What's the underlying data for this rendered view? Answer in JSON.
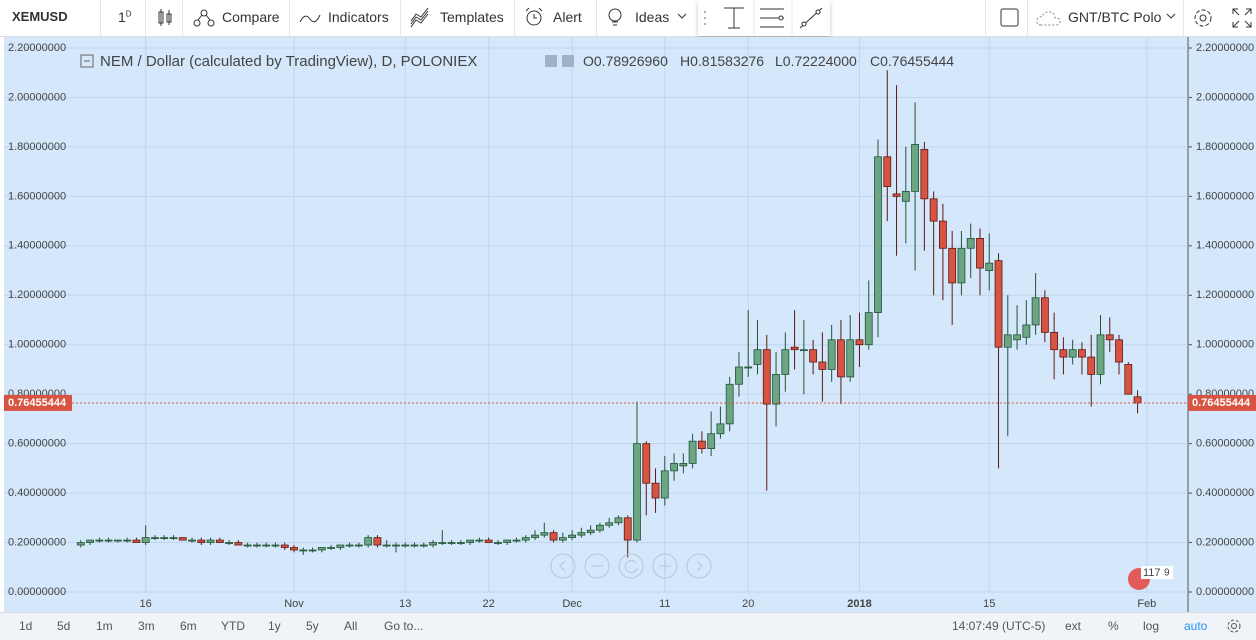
{
  "toolbar": {
    "symbol": "XEMUSD",
    "interval": "1",
    "interval_unit": "D",
    "buttons": [
      "Compare",
      "Indicators",
      "Templates",
      "Alert",
      "Ideas"
    ],
    "watchlist": "GNT/BTC Polo"
  },
  "chart_data": {
    "type": "candlestick",
    "title": "NEM / Dollar (calculated by TradingView), D, POLONIEX",
    "ohlc_header": [
      {
        "key": "O",
        "text": "0.78926960"
      },
      {
        "key": "H",
        "text": "0.81583276"
      },
      {
        "key": "L",
        "text": "0.72224000"
      },
      {
        "key": "C",
        "text": "0.76455444"
      }
    ],
    "categories": [
      null,
      null,
      null,
      null,
      null,
      null,
      null,
      "16",
      null,
      null,
      null,
      null,
      null,
      null,
      null,
      null,
      null,
      null,
      null,
      null,
      null,
      null,
      null,
      "Nov",
      null,
      null,
      null,
      null,
      null,
      null,
      null,
      null,
      null,
      null,
      null,
      "13",
      null,
      null,
      null,
      null,
      null,
      null,
      null,
      null,
      "22",
      null,
      null,
      null,
      null,
      null,
      null,
      null,
      null,
      "Dec",
      null,
      null,
      null,
      null,
      null,
      null,
      null,
      null,
      null,
      "11",
      null,
      null,
      null,
      null,
      null,
      null,
      null,
      null,
      "20",
      null,
      null,
      null,
      null,
      null,
      null,
      null,
      null,
      null,
      null,
      null,
      "2018",
      null,
      null,
      null,
      null,
      null,
      null,
      null,
      null,
      null,
      null,
      null,
      null,
      null,
      "15",
      null,
      null,
      null,
      null,
      null,
      null,
      null,
      null,
      null,
      null,
      null,
      null,
      null,
      null,
      null,
      null,
      "Feb"
    ],
    "open": [
      0.19,
      0.2,
      0.21,
      0.21,
      0.21,
      0.21,
      0.21,
      0.2,
      0.22,
      0.22,
      0.22,
      0.22,
      0.21,
      0.21,
      0.2,
      0.21,
      0.2,
      0.2,
      0.19,
      0.19,
      0.19,
      0.19,
      0.19,
      0.18,
      0.17,
      0.17,
      0.17,
      0.18,
      0.18,
      0.19,
      0.19,
      0.19,
      0.22,
      0.19,
      0.19,
      0.19,
      0.19,
      0.19,
      0.19,
      0.2,
      0.2,
      0.2,
      0.2,
      0.21,
      0.21,
      0.2,
      0.2,
      0.21,
      0.21,
      0.22,
      0.23,
      0.24,
      0.21,
      0.22,
      0.23,
      0.24,
      0.25,
      0.27,
      0.28,
      0.3,
      0.21,
      0.6,
      0.44,
      0.38,
      0.49,
      0.51,
      0.52,
      0.61,
      0.58,
      0.64,
      0.68,
      0.84,
      0.91,
      0.92,
      0.98,
      0.76,
      0.88,
      0.99,
      0.98,
      0.98,
      0.93,
      0.9,
      1.02,
      0.87,
      1.02,
      1.0,
      1.13,
      1.76,
      1.61,
      1.58,
      1.62,
      1.79,
      1.59,
      1.5,
      1.39,
      1.25,
      1.39,
      1.43,
      1.3,
      1.34,
      0.99,
      1.02,
      1.03,
      1.08,
      1.19,
      1.05,
      0.98,
      0.95,
      0.98,
      0.95,
      0.88,
      1.04,
      1.02,
      0.92,
      0.7892696,
      null
    ],
    "high": [
      0.21,
      0.21,
      0.22,
      0.22,
      0.21,
      0.22,
      0.22,
      0.27,
      0.23,
      0.23,
      0.23,
      0.22,
      0.22,
      0.22,
      0.22,
      0.22,
      0.21,
      0.21,
      0.2,
      0.2,
      0.2,
      0.2,
      0.2,
      0.19,
      0.18,
      0.18,
      0.18,
      0.19,
      0.19,
      0.2,
      0.2,
      0.23,
      0.23,
      0.21,
      0.2,
      0.2,
      0.2,
      0.2,
      0.21,
      0.25,
      0.21,
      0.21,
      0.21,
      0.22,
      0.22,
      0.21,
      0.21,
      0.22,
      0.23,
      0.25,
      0.28,
      0.25,
      0.24,
      0.25,
      0.26,
      0.27,
      0.28,
      0.3,
      0.31,
      0.31,
      0.77,
      0.61,
      0.5,
      0.55,
      0.56,
      0.56,
      0.64,
      0.65,
      0.73,
      0.75,
      0.87,
      0.97,
      1.14,
      1.1,
      1.04,
      0.97,
      1.05,
      1.14,
      1.1,
      1.02,
      1.05,
      1.08,
      1.1,
      1.12,
      1.13,
      1.26,
      1.83,
      2.11,
      2.05,
      1.8,
      1.98,
      1.82,
      1.62,
      1.57,
      1.46,
      1.46,
      1.49,
      1.47,
      1.45,
      1.37,
      1.2,
      1.16,
      1.18,
      1.29,
      1.22,
      1.13,
      1.03,
      1.02,
      1.01,
      1.04,
      1.12,
      1.11,
      1.04,
      0.93,
      0.81583276,
      null
    ],
    "low": [
      0.18,
      0.19,
      0.2,
      0.2,
      0.2,
      0.2,
      0.2,
      0.19,
      0.21,
      0.21,
      0.21,
      0.21,
      0.2,
      0.19,
      0.19,
      0.2,
      0.19,
      0.19,
      0.18,
      0.18,
      0.18,
      0.18,
      0.17,
      0.16,
      0.15,
      0.16,
      0.16,
      0.17,
      0.17,
      0.18,
      0.18,
      0.18,
      0.18,
      0.18,
      0.16,
      0.18,
      0.18,
      0.18,
      0.18,
      0.19,
      0.19,
      0.19,
      0.19,
      0.2,
      0.2,
      0.19,
      0.19,
      0.2,
      0.2,
      0.21,
      0.22,
      0.2,
      0.2,
      0.21,
      0.22,
      0.23,
      0.24,
      0.26,
      0.27,
      0.14,
      0.2,
      0.31,
      0.32,
      0.35,
      0.45,
      0.48,
      0.5,
      0.56,
      0.55,
      0.62,
      0.65,
      0.79,
      0.87,
      0.88,
      0.41,
      0.67,
      0.81,
      0.9,
      0.8,
      0.88,
      0.77,
      0.85,
      0.76,
      0.85,
      0.91,
      0.98,
      1.03,
      1.5,
      1.36,
      1.41,
      1.3,
      1.38,
      1.2,
      1.18,
      1.08,
      1.2,
      1.27,
      1.2,
      1.22,
      0.5,
      0.63,
      0.98,
      1.0,
      1.04,
      1.01,
      0.86,
      0.88,
      0.92,
      0.88,
      0.75,
      0.84,
      0.97,
      0.88,
      0.8,
      0.72224,
      null
    ],
    "close": [
      0.2,
      0.21,
      0.21,
      0.21,
      0.21,
      0.21,
      0.2,
      0.22,
      0.22,
      0.22,
      0.22,
      0.21,
      0.21,
      0.2,
      0.21,
      0.2,
      0.2,
      0.19,
      0.19,
      0.19,
      0.19,
      0.19,
      0.18,
      0.17,
      0.17,
      0.17,
      0.18,
      0.18,
      0.19,
      0.19,
      0.19,
      0.22,
      0.19,
      0.19,
      0.19,
      0.19,
      0.19,
      0.19,
      0.2,
      0.2,
      0.2,
      0.2,
      0.21,
      0.21,
      0.2,
      0.2,
      0.21,
      0.21,
      0.22,
      0.23,
      0.24,
      0.21,
      0.22,
      0.23,
      0.24,
      0.25,
      0.27,
      0.28,
      0.3,
      0.21,
      0.6,
      0.44,
      0.38,
      0.49,
      0.52,
      0.52,
      0.61,
      0.58,
      0.64,
      0.68,
      0.84,
      0.91,
      0.91,
      0.98,
      0.76,
      0.88,
      0.98,
      0.98,
      0.98,
      0.93,
      0.9,
      1.02,
      0.87,
      1.02,
      1.0,
      1.13,
      1.76,
      1.64,
      1.6,
      1.62,
      1.81,
      1.59,
      1.5,
      1.39,
      1.25,
      1.39,
      1.43,
      1.31,
      1.33,
      0.99,
      1.04,
      1.04,
      1.08,
      1.19,
      1.05,
      0.98,
      0.95,
      0.98,
      0.95,
      0.88,
      1.04,
      1.02,
      0.93,
      0.8,
      0.76455444,
      null
    ],
    "up_color": "#6ba583",
    "down_color": "#d75442",
    "ylim": [
      0,
      2.2
    ],
    "yticks": [
      {
        "value": 0,
        "label": "0.00000000"
      },
      {
        "value": 0.2,
        "label": "0.20000000"
      },
      {
        "value": 0.4,
        "label": "0.40000000"
      },
      {
        "value": 0.6,
        "label": "0.60000000"
      },
      {
        "value": 0.8,
        "label": "0.80000000"
      },
      {
        "value": 1.0,
        "label": "1.00000000"
      },
      {
        "value": 1.2,
        "label": "1.20000000"
      },
      {
        "value": 1.4,
        "label": "1.40000000"
      },
      {
        "value": 1.6,
        "label": "1.60000000"
      },
      {
        "value": 1.8,
        "label": "1.80000000"
      },
      {
        "value": 2.0,
        "label": "2.00000000"
      },
      {
        "value": 2.2,
        "label": "2.20000000"
      }
    ],
    "grid": true,
    "last_price": {
      "value": 0.76455444,
      "label": "0.76455444"
    }
  },
  "bottom_bar": {
    "ranges": [
      "1d",
      "5d",
      "1m",
      "3m",
      "6m",
      "YTD",
      "1y",
      "5y",
      "All"
    ],
    "goto": "Go to...",
    "clock": "14:07:49 (UTC-5)",
    "options": [
      "ext",
      "%",
      "log",
      "auto"
    ]
  },
  "badge": {
    "count": 117,
    "sub": 9
  }
}
